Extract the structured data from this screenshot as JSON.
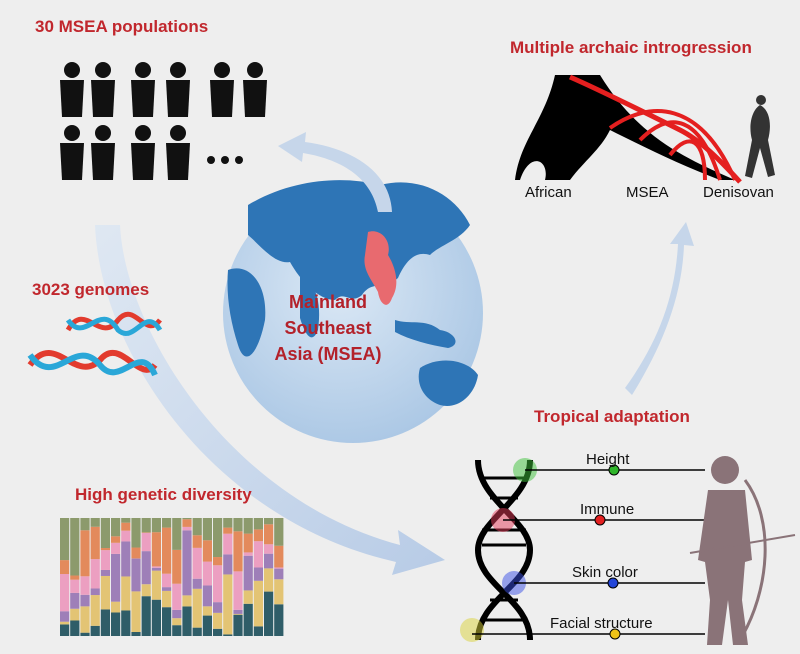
{
  "populations": {
    "title": "30 MSEA populations"
  },
  "introgression": {
    "title": "Multiple archaic introgression",
    "labels": [
      "African",
      "MSEA",
      "Denisovan"
    ]
  },
  "genomes": {
    "title": "3023 genomes"
  },
  "region": {
    "lines": [
      "Mainland",
      "Southeast",
      "Asia (MSEA)"
    ]
  },
  "diversity": {
    "title": "High genetic diversity"
  },
  "adaptation": {
    "title": "Tropical adaptation",
    "traits": [
      "Height",
      "Immune",
      "Skin color",
      "Facial structure"
    ]
  }
}
